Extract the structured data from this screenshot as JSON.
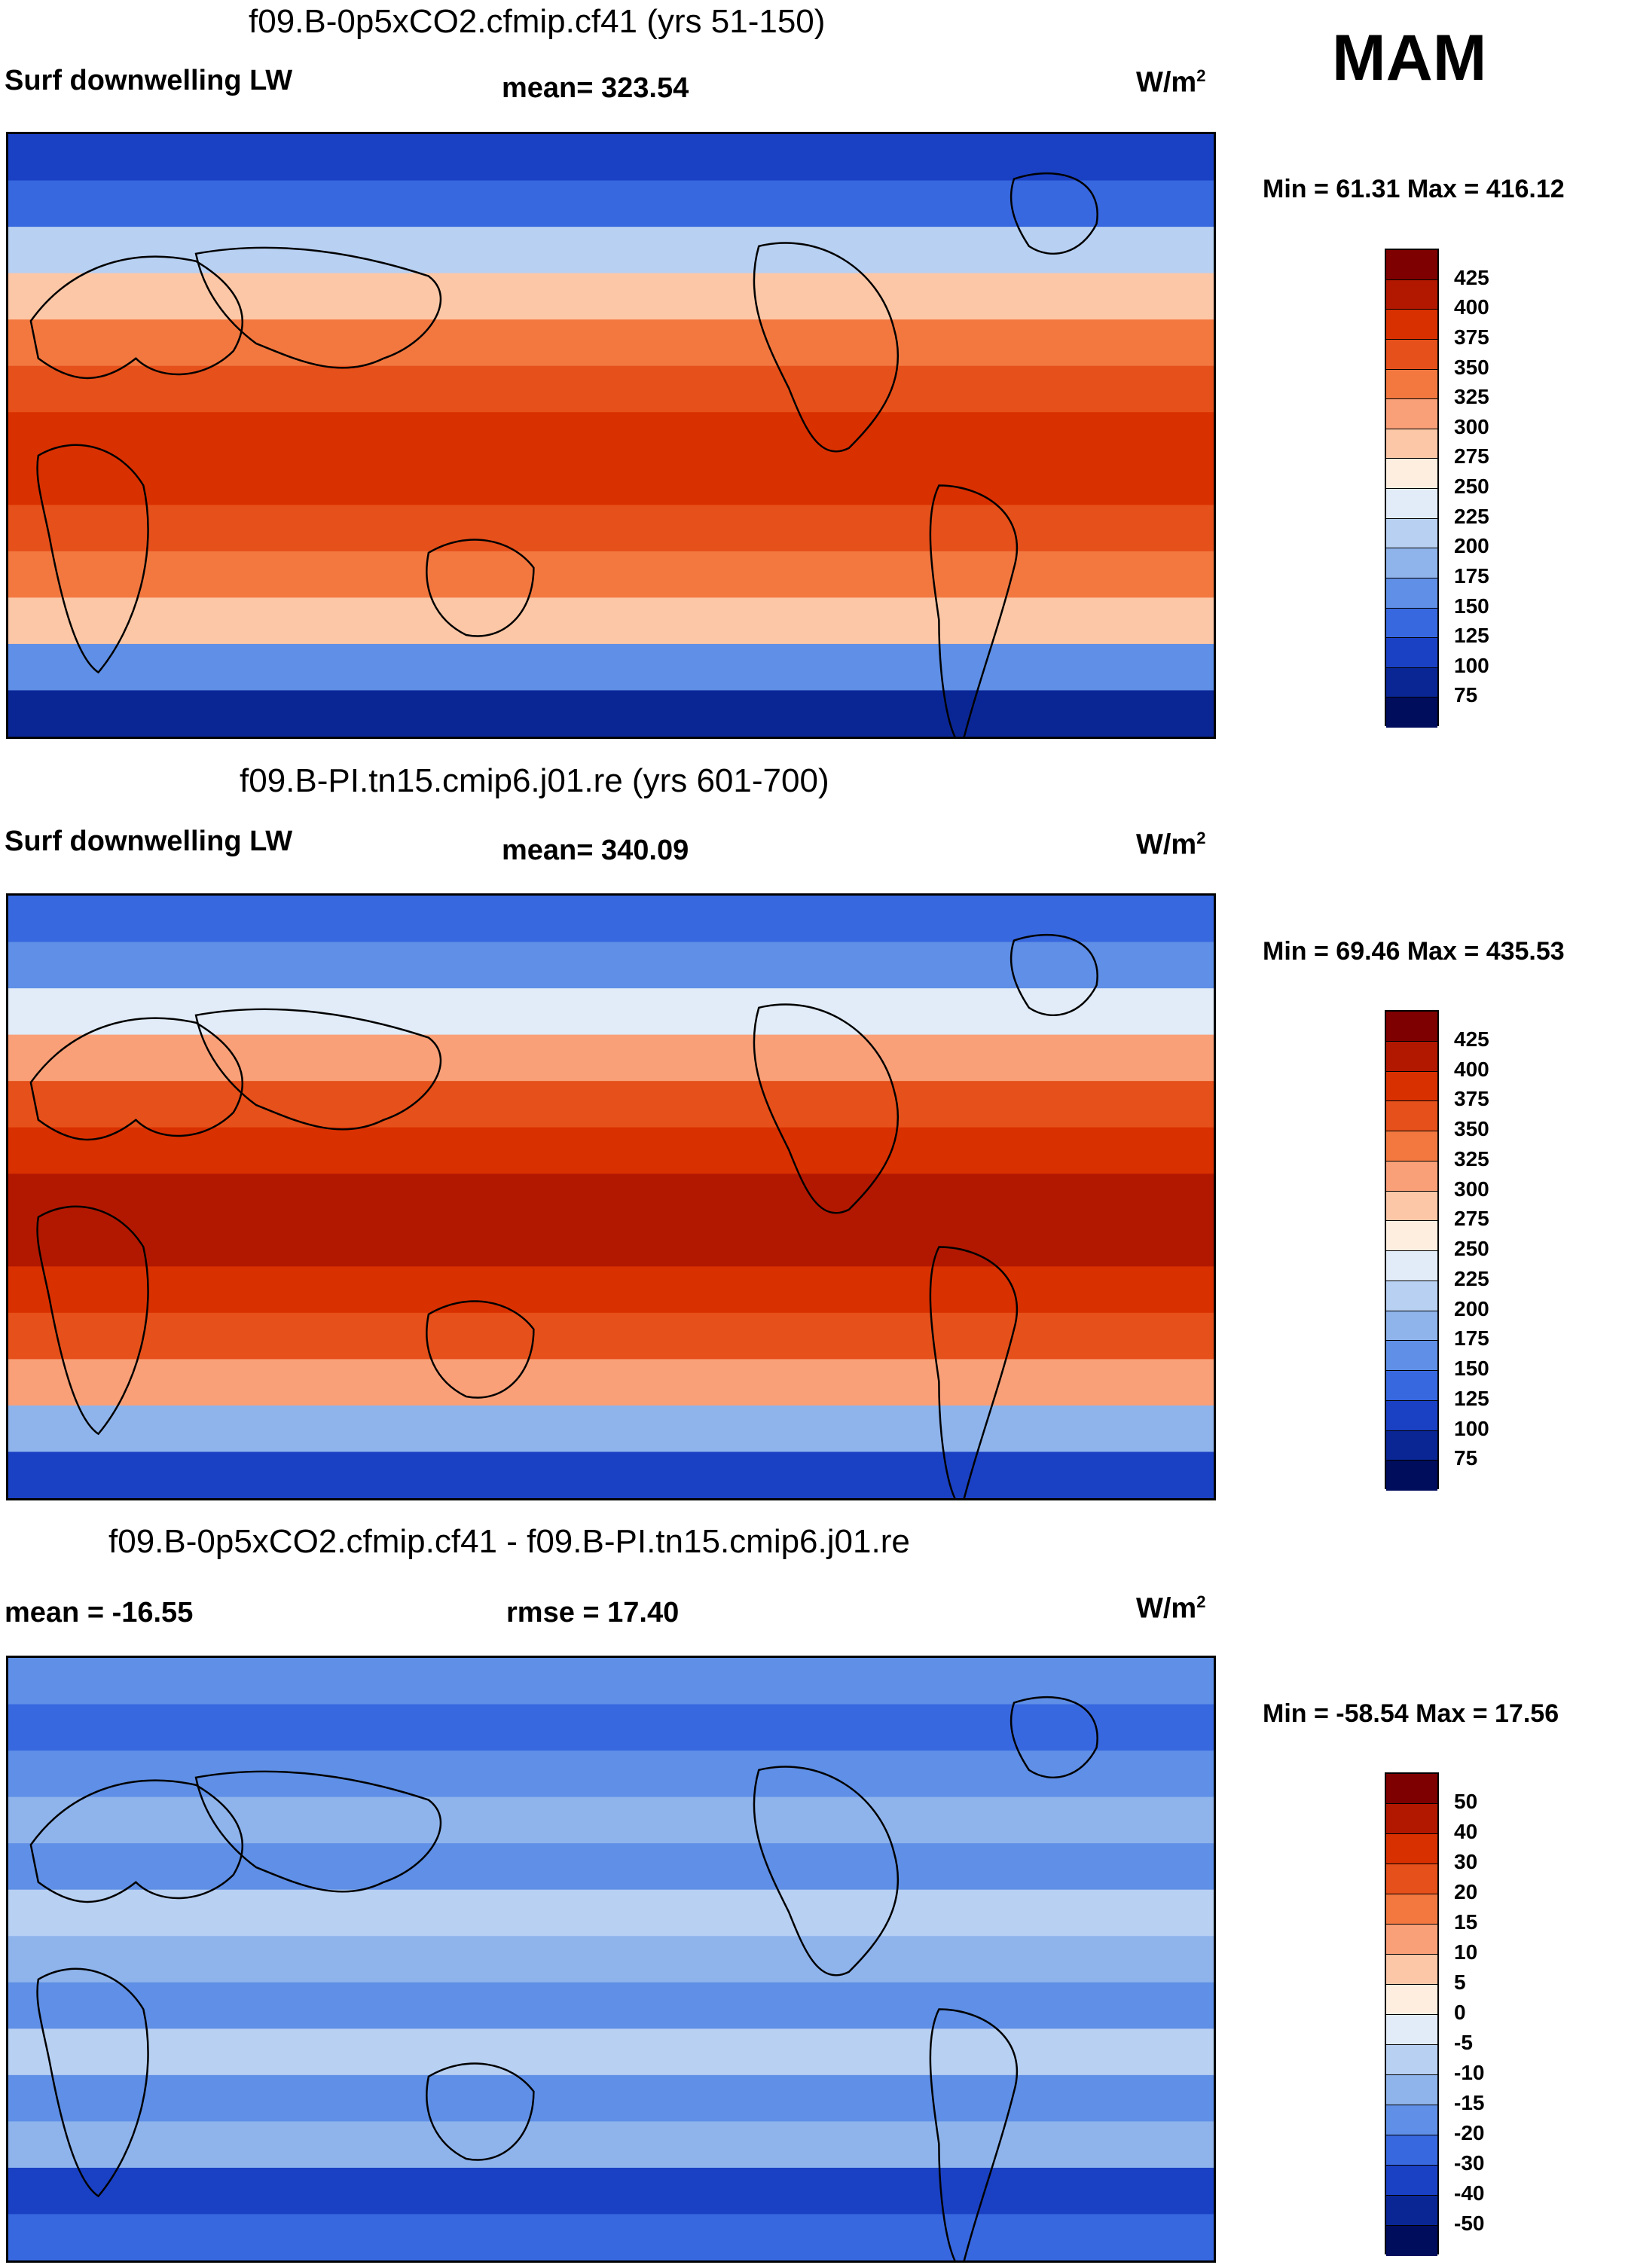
{
  "season": "MAM",
  "units_base": "W/m",
  "units_exp": "2",
  "panels": [
    {
      "title": "f09.B-0p5xCO2.cfmip.cf41 (yrs 51-150)",
      "left_label": "Surf downwelling LW",
      "center_label": "mean= 323.54",
      "min_max": "Min =  61.31 Max = 416.12",
      "colorbar_labels": [
        "425",
        "400",
        "375",
        "350",
        "325",
        "300",
        "275",
        "250",
        "225",
        "200",
        "175",
        "150",
        "125",
        "100",
        "75"
      ],
      "colorbar_colors": [
        "#7f0000",
        "#b21800",
        "#d93000",
        "#e6501a",
        "#f27840",
        "#f9a078",
        "#fcc7a6",
        "#fdeee0",
        "#e1ecf8",
        "#b8d0f2",
        "#8fb4ec",
        "#5f8fe6",
        "#3868df",
        "#1a40c4",
        "#0a2695",
        "#000c5c"
      ]
    },
    {
      "title": "f09.B-PI.tn15.cmip6.j01.re (yrs 601-700)",
      "left_label": "Surf downwelling LW",
      "center_label": "mean= 340.09",
      "min_max": "Min =  69.46 Max = 435.53",
      "colorbar_labels": [
        "425",
        "400",
        "375",
        "350",
        "325",
        "300",
        "275",
        "250",
        "225",
        "200",
        "175",
        "150",
        "125",
        "100",
        "75"
      ],
      "colorbar_colors": [
        "#7f0000",
        "#b21800",
        "#d93000",
        "#e6501a",
        "#f27840",
        "#f9a078",
        "#fcc7a6",
        "#fdeee0",
        "#e1ecf8",
        "#b8d0f2",
        "#8fb4ec",
        "#5f8fe6",
        "#3868df",
        "#1a40c4",
        "#0a2695",
        "#000c5c"
      ]
    },
    {
      "title": "f09.B-0p5xCO2.cfmip.cf41 - f09.B-PI.tn15.cmip6.j01.re",
      "left_label": "mean = -16.55",
      "center_label": "rmse =  17.40",
      "min_max": "Min = -58.54 Max =  17.56",
      "colorbar_labels": [
        "50",
        "40",
        "30",
        "20",
        "15",
        "10",
        "5",
        "0",
        "-5",
        "-10",
        "-15",
        "-20",
        "-30",
        "-40",
        "-50"
      ],
      "colorbar_colors": [
        "#7f0000",
        "#b21800",
        "#d93000",
        "#e6501a",
        "#f27840",
        "#f9a078",
        "#fcc7a6",
        "#fdeee0",
        "#e1ecf8",
        "#b8d0f2",
        "#8fb4ec",
        "#5f8fe6",
        "#3868df",
        "#1a40c4",
        "#0a2695",
        "#000c5c"
      ]
    }
  ],
  "field_bands": {
    "panel_1": [
      "#1a40c4",
      "#3868df",
      "#b8d0f2",
      "#fcc7a6",
      "#f27840",
      "#e6501a",
      "#d93000",
      "#d93000",
      "#e6501a",
      "#f27840",
      "#fcc7a6",
      "#5f8fe6",
      "#0a2695"
    ],
    "panel_2": [
      "#3868df",
      "#5f8fe6",
      "#e1ecf8",
      "#f9a078",
      "#e6501a",
      "#d93000",
      "#b21800",
      "#b21800",
      "#d93000",
      "#e6501a",
      "#f9a078",
      "#8fb4ec",
      "#1a40c4"
    ],
    "panel_3": [
      "#5f8fe6",
      "#3868df",
      "#5f8fe6",
      "#8fb4ec",
      "#5f8fe6",
      "#b8d0f2",
      "#8fb4ec",
      "#5f8fe6",
      "#b8d0f2",
      "#5f8fe6",
      "#8fb4ec",
      "#1a40c4",
      "#3868df"
    ]
  }
}
